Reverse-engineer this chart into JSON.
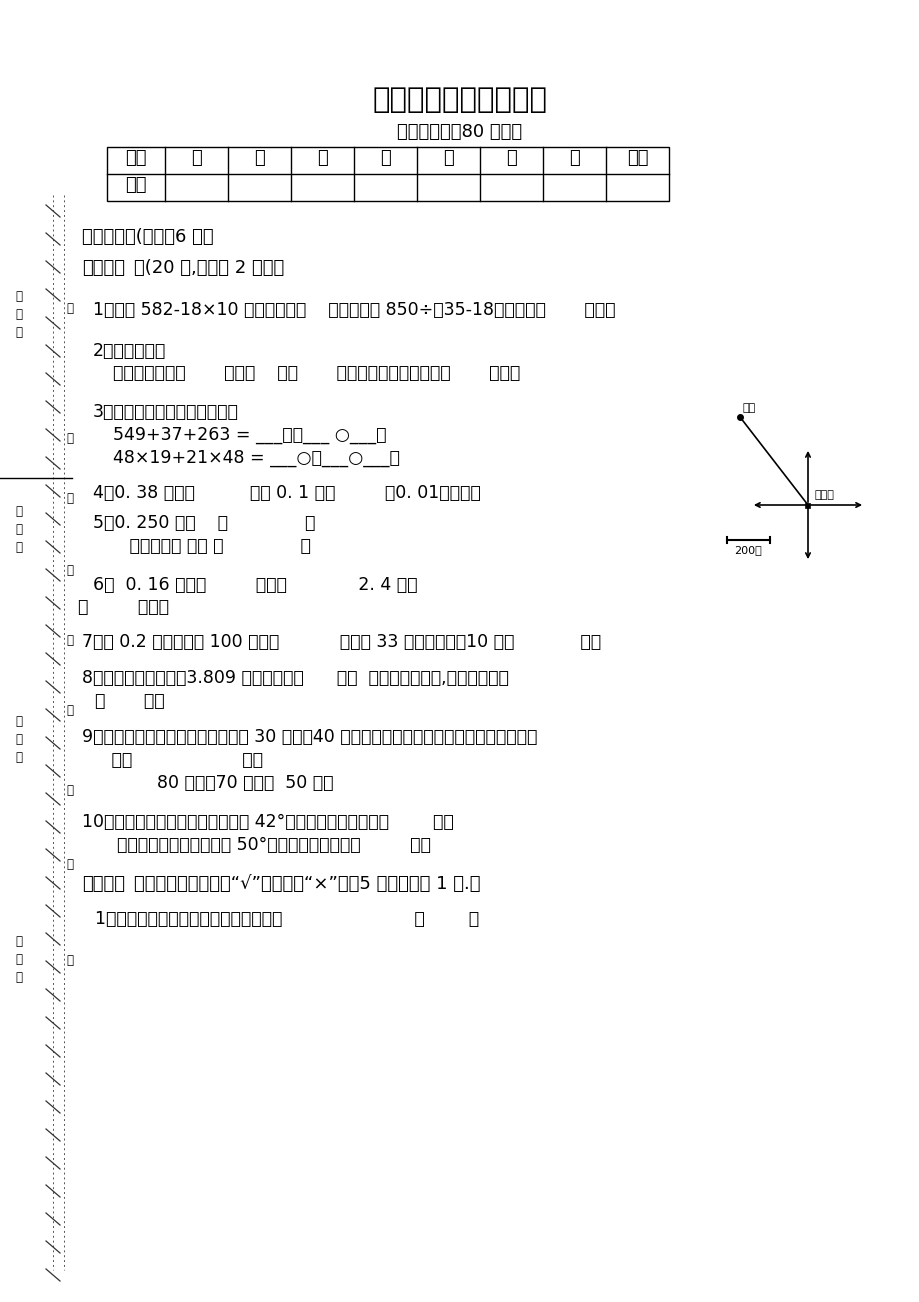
{
  "title": "四年级数学期末自测卷",
  "subtitle": "（答卷时间：80 分钟）",
  "bg_color": "#ffffff",
  "table_headers": [
    "题次",
    "一",
    "二",
    "三",
    "四",
    "五",
    "六",
    "七",
    "合计"
  ],
  "table_row_label": "得分",
  "section1": "一、口算。(另卷，6 分）",
  "section2_bold": "二、填空",
  "section2_rest": "。(20 分,每小题 2 分。）",
  "q1": "1、计算 582-18×10 时，应先算（    ）法；计算 850÷（35-18）应先算（       ）法。",
  "q2a": "2、观察右图。",
  "q2b": "学校在小玲家（       ）偏（    ）（       ）的方向上，距离约是（       ）米。",
  "q3a": "3、填上合适的数或运算符号。",
  "q3b": "549+37+263 = ___＋（___ ○___）",
  "q3c": "48×19+21×48 = ___○（___○___）",
  "q4": "4、0. 38 是由（          ）个 0. 1 和（         ）0. 01组成的。",
  "q5a": "5、0. 250 读作    （              ）",
  "q5b": "   十六点零五 写作 （              ）",
  "q6a": "6、  0. 16 米＝（         ）厘米             2. 4 吨＝",
  "q6b": "（         ）千克",
  "q7": "7、把 0.2 扩大到它的 100 倍是（           ），把 33 缩小为原来的10 是（            ）。",
  "q8a": "8、保留一位小数时，3.809 的近似数是（      ）；  精确到百分位时,它的近似数是",
  "q8b": "（       ）。",
  "q9a": "9、如果一个三角形的两条边分别是 30 厘米、40 厘米，第三条边的长度要在下面选出，只能",
  "q9b": "   选（                    ）。",
  "q9c": "        80 厘米；70 厘米；  50 厘米",
  "q10a": "10、一个直角三角形的一个锐角是 42°，它的另一个锐角是（        ）。",
  "q10b": "    一个等腰三角形的顶角是 50°，它的一个底角是（         ）。",
  "section3_bold": "三、判断",
  "section3_rest": "。（对的在括号里打“√”，错的打“×”）（5 分，每小题 1 分.）",
  "judge1": "1、三角形的任意两边的和大于第三边。                        （        ）"
}
